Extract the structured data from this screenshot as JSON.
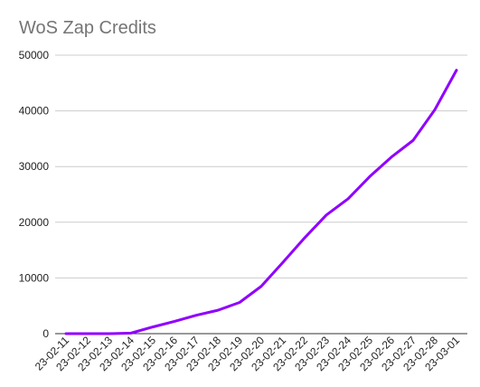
{
  "chart_data": {
    "type": "line",
    "title": "WoS Zap Credits",
    "xlabel": "",
    "ylabel": "",
    "x": [
      "23-02-11",
      "23-02-12",
      "23-02-13",
      "23-02-14",
      "23-02-15",
      "23-02-16",
      "23-02-17",
      "23-02-18",
      "23-02-19",
      "23-02-20",
      "23-02-21",
      "23-02-22",
      "23-02-23",
      "23-02-24",
      "23-02-25",
      "23-02-26",
      "23-02-27",
      "23-02-28",
      "23-03-01"
    ],
    "series": [
      {
        "values": [
          0,
          0,
          0,
          100,
          1200,
          2200,
          3300,
          4200,
          5600,
          8500,
          12800,
          17200,
          21300,
          24200,
          28200,
          31700,
          34700,
          40200,
          47300
        ]
      }
    ],
    "yticks": [
      "0",
      "10000",
      "20000",
      "30000",
      "40000",
      "50000"
    ],
    "ylim": [
      0,
      50000
    ],
    "grid": true,
    "legend": "none",
    "colors": {
      "line": "#8f00ff",
      "title": "#757575",
      "grid": "#cccccc"
    }
  }
}
